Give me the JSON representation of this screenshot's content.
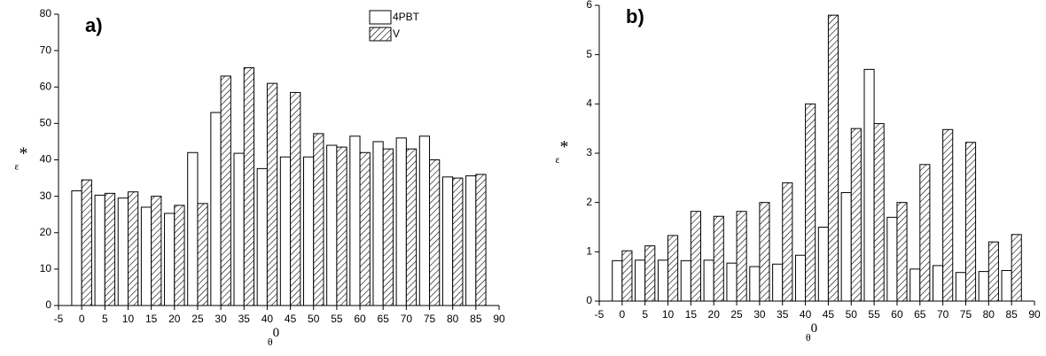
{
  "chart_data": [
    {
      "type": "bar",
      "panel": "a)",
      "ylabel": "ε",
      "ylabel_sup": "*",
      "xlabel": "θ",
      "xlabel_sup": "0",
      "x": [
        0,
        5,
        10,
        15,
        20,
        25,
        30,
        35,
        40,
        45,
        50,
        55,
        60,
        65,
        70,
        75,
        80,
        85
      ],
      "series": [
        {
          "name": "4PBT",
          "color": "#ffffff",
          "hatch": false,
          "values": [
            31.5,
            30.3,
            29.5,
            27,
            25.3,
            42,
            53,
            41.8,
            37.6,
            40.8,
            40.8,
            44,
            46.5,
            45,
            46,
            46.5,
            35.3,
            35.6
          ]
        },
        {
          "name": "V",
          "color": "#ffffff",
          "hatch": true,
          "values": [
            34.5,
            30.8,
            31.2,
            30,
            27.5,
            28,
            63,
            65.3,
            61,
            58.5,
            47.2,
            43.5,
            42,
            43,
            43,
            40,
            35,
            36
          ]
        }
      ],
      "xlim": [
        -5,
        90
      ],
      "xticks": [
        -5,
        0,
        5,
        10,
        15,
        20,
        25,
        30,
        35,
        40,
        45,
        50,
        55,
        60,
        65,
        70,
        75,
        80,
        85,
        90
      ],
      "ylim": [
        0,
        80
      ],
      "yticks": [
        0,
        10,
        20,
        30,
        40,
        50,
        60,
        70,
        80
      ],
      "legend": "upper right"
    },
    {
      "type": "bar",
      "panel": "b)",
      "ylabel": "ε",
      "ylabel_sup": "*",
      "xlabel": "θ",
      "xlabel_sup": "0",
      "x": [
        0,
        5,
        10,
        15,
        20,
        25,
        30,
        35,
        40,
        45,
        50,
        55,
        60,
        65,
        70,
        75,
        80,
        85
      ],
      "series": [
        {
          "color": "#ffffff",
          "hatch": false,
          "values": [
            0.82,
            0.83,
            0.83,
            0.82,
            0.83,
            0.77,
            0.7,
            0.75,
            0.93,
            1.5,
            2.2,
            4.7,
            1.7,
            0.65,
            0.72,
            0.58,
            0.6,
            0.62
          ]
        },
        {
          "color": "#ffffff",
          "hatch": true,
          "values": [
            1.02,
            1.12,
            1.33,
            1.82,
            1.72,
            1.82,
            2.0,
            2.4,
            4.0,
            5.8,
            3.5,
            3.6,
            2.0,
            2.77,
            3.48,
            3.22,
            1.2,
            1.35
          ]
        }
      ],
      "xlim": [
        -5,
        90
      ],
      "xticks": [
        -5,
        0,
        5,
        10,
        15,
        20,
        25,
        30,
        35,
        40,
        45,
        50,
        55,
        60,
        65,
        70,
        75,
        80,
        85,
        90
      ],
      "ylim": [
        0,
        6
      ],
      "yticks": [
        0,
        1,
        2,
        3,
        4,
        5,
        6
      ],
      "legend": false
    }
  ]
}
